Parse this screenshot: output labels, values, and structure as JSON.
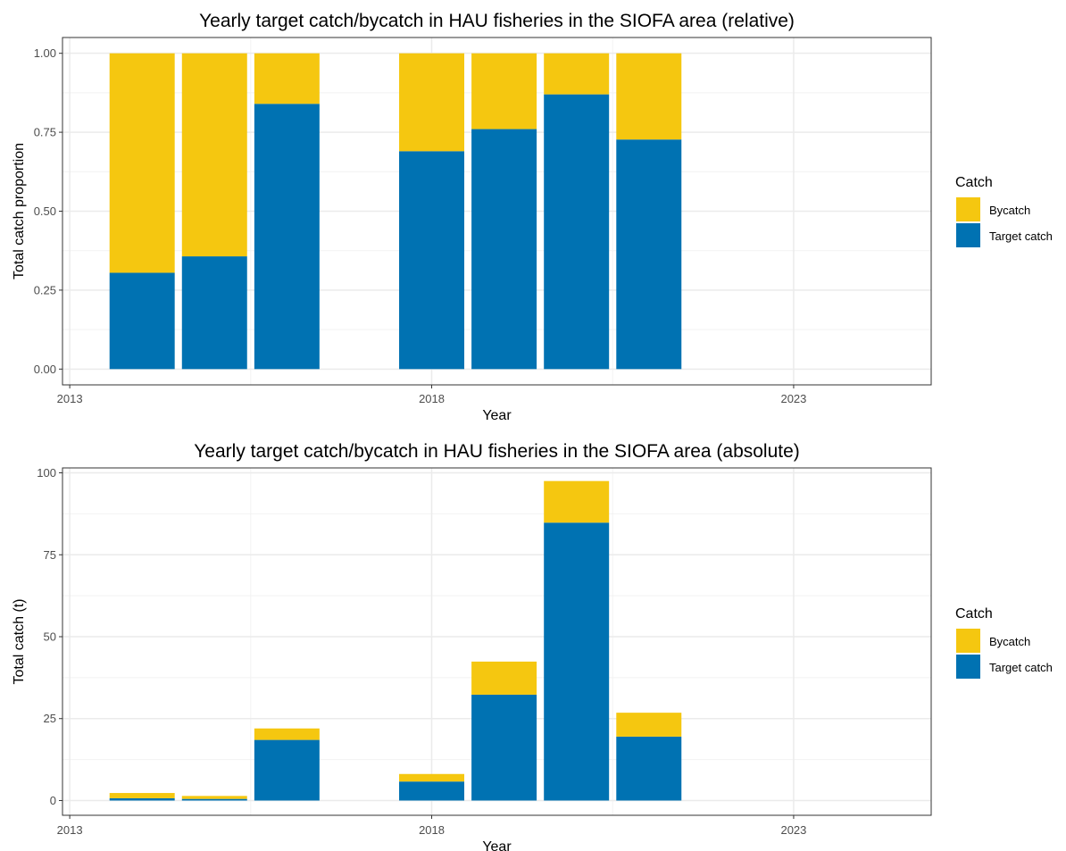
{
  "chart_data": [
    {
      "type": "bar",
      "stacked": true,
      "title": "Yearly target catch/bycatch in HAU fisheries in the SIOFA area (relative)",
      "xlabel": "Year",
      "ylabel": "Total catch proportion",
      "x": [
        2014,
        2015,
        2016,
        2018,
        2019,
        2020,
        2021
      ],
      "xlim": [
        2012.9,
        2024.9
      ],
      "ylim": [
        -0.05,
        1.05
      ],
      "xticks": [
        2013,
        2018,
        2023
      ],
      "xtick_labels": [
        "2013",
        "2018",
        "2023"
      ],
      "yticks": [
        0,
        0.25,
        0.5,
        0.75,
        1.0
      ],
      "ytick_labels": [
        "0.00",
        "0.25",
        "0.50",
        "0.75",
        "1.00"
      ],
      "grid": true,
      "legend": {
        "title": "Catch",
        "position": "right",
        "labels": [
          "Bycatch",
          "Target catch"
        ]
      },
      "series": [
        {
          "name": "Target catch",
          "color": "#0072B2",
          "values": [
            0.305,
            0.357,
            0.84,
            0.69,
            0.76,
            0.87,
            0.727
          ]
        },
        {
          "name": "Bycatch",
          "color": "#F5C710",
          "values": [
            0.695,
            0.643,
            0.16,
            0.31,
            0.24,
            0.13,
            0.273
          ]
        }
      ]
    },
    {
      "type": "bar",
      "stacked": true,
      "title": "Yearly target catch/bycatch in HAU fisheries in the SIOFA area (absolute)",
      "xlabel": "Year",
      "ylabel": "Total catch (t)",
      "x": [
        2014,
        2015,
        2016,
        2018,
        2019,
        2020,
        2021
      ],
      "xlim": [
        2012.9,
        2024.9
      ],
      "ylim": [
        -4.5,
        101.5
      ],
      "xticks": [
        2013,
        2018,
        2023
      ],
      "xtick_labels": [
        "2013",
        "2018",
        "2023"
      ],
      "yticks": [
        0,
        25,
        50,
        75,
        100
      ],
      "ytick_labels": [
        "0",
        "25",
        "50",
        "75",
        "100"
      ],
      "grid": true,
      "legend": {
        "title": "Catch",
        "position": "right",
        "labels": [
          "Bycatch",
          "Target catch"
        ]
      },
      "series": [
        {
          "name": "Target catch",
          "color": "#0072B2",
          "values": [
            0.7,
            0.5,
            18.5,
            5.8,
            32.3,
            84.8,
            19.5
          ]
        },
        {
          "name": "Bycatch",
          "color": "#F5C710",
          "values": [
            1.6,
            0.9,
            3.5,
            2.3,
            10.1,
            12.7,
            7.3
          ]
        }
      ]
    }
  ]
}
